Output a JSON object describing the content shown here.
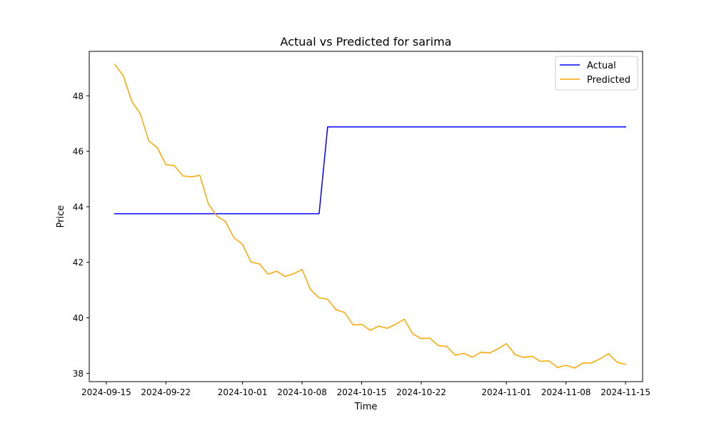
{
  "chart_data": {
    "type": "line",
    "title": "Actual vs Predicted for sarima",
    "xlabel": "Time",
    "ylabel": "Price",
    "xlim": [
      "2024-09-13",
      "2024-11-17"
    ],
    "ylim": [
      37.7,
      49.6
    ],
    "xticks": [
      "2024-09-15",
      "2024-09-22",
      "2024-10-01",
      "2024-10-08",
      "2024-10-15",
      "2024-10-22",
      "2024-11-01",
      "2024-11-08",
      "2024-11-15"
    ],
    "yticks": [
      38,
      40,
      42,
      44,
      46,
      48
    ],
    "grid": false,
    "legend_position": "top-right",
    "series": [
      {
        "name": "Actual",
        "color": "#0000ff",
        "points": [
          [
            "2024-09-16",
            43.75
          ],
          [
            "2024-10-10",
            43.75
          ],
          [
            "2024-10-11",
            46.88
          ],
          [
            "2024-11-15",
            46.88
          ]
        ]
      },
      {
        "name": "Predicted",
        "color": "#ffa500",
        "points": [
          [
            "2024-09-16",
            49.13
          ],
          [
            "2024-09-17",
            48.72
          ],
          [
            "2024-09-18",
            47.8
          ],
          [
            "2024-09-19",
            47.35
          ],
          [
            "2024-09-20",
            46.37
          ],
          [
            "2024-09-21",
            46.13
          ],
          [
            "2024-09-22",
            45.52
          ],
          [
            "2024-09-23",
            45.48
          ],
          [
            "2024-09-24",
            45.11
          ],
          [
            "2024-09-25",
            45.08
          ],
          [
            "2024-09-26",
            45.13
          ],
          [
            "2024-09-27",
            44.1
          ],
          [
            "2024-09-28",
            43.66
          ],
          [
            "2024-09-29",
            43.47
          ],
          [
            "2024-09-30",
            42.88
          ],
          [
            "2024-10-01",
            42.65
          ],
          [
            "2024-10-02",
            42.01
          ],
          [
            "2024-10-03",
            41.94
          ],
          [
            "2024-10-04",
            41.57
          ],
          [
            "2024-10-05",
            41.68
          ],
          [
            "2024-10-06",
            41.49
          ],
          [
            "2024-10-07",
            41.59
          ],
          [
            "2024-10-08",
            41.74
          ],
          [
            "2024-10-09",
            41.01
          ],
          [
            "2024-10-10",
            40.72
          ],
          [
            "2024-10-11",
            40.67
          ],
          [
            "2024-10-12",
            40.29
          ],
          [
            "2024-10-13",
            40.19
          ],
          [
            "2024-10-14",
            39.74
          ],
          [
            "2024-10-15",
            39.77
          ],
          [
            "2024-10-16",
            39.55
          ],
          [
            "2024-10-17",
            39.7
          ],
          [
            "2024-10-18",
            39.62
          ],
          [
            "2024-10-19",
            39.77
          ],
          [
            "2024-10-20",
            39.95
          ],
          [
            "2024-10-21",
            39.42
          ],
          [
            "2024-10-22",
            39.25
          ],
          [
            "2024-10-23",
            39.27
          ],
          [
            "2024-10-24",
            39.0
          ],
          [
            "2024-10-25",
            38.97
          ],
          [
            "2024-10-26",
            38.65
          ],
          [
            "2024-10-27",
            38.72
          ],
          [
            "2024-10-28",
            38.58
          ],
          [
            "2024-10-29",
            38.76
          ],
          [
            "2024-10-30",
            38.73
          ],
          [
            "2024-10-31",
            38.88
          ],
          [
            "2024-11-01",
            39.07
          ],
          [
            "2024-11-02",
            38.68
          ],
          [
            "2024-11-03",
            38.57
          ],
          [
            "2024-11-04",
            38.62
          ],
          [
            "2024-11-05",
            38.43
          ],
          [
            "2024-11-06",
            38.45
          ],
          [
            "2024-11-07",
            38.21
          ],
          [
            "2024-11-08",
            38.29
          ],
          [
            "2024-11-09",
            38.19
          ],
          [
            "2024-11-10",
            38.37
          ],
          [
            "2024-11-11",
            38.37
          ],
          [
            "2024-11-12",
            38.52
          ],
          [
            "2024-11-13",
            38.71
          ],
          [
            "2024-11-14",
            38.4
          ],
          [
            "2024-11-15",
            38.32
          ]
        ]
      }
    ]
  }
}
